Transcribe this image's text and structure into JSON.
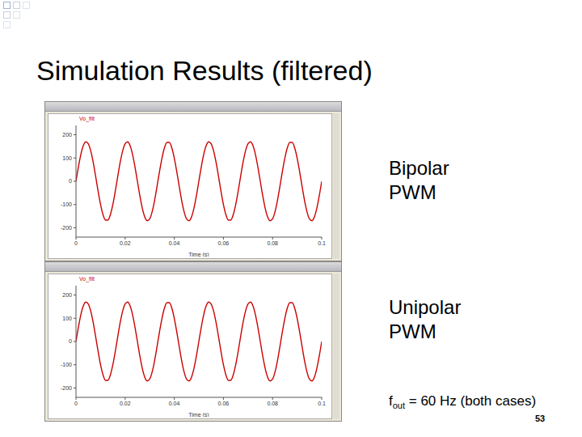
{
  "slide": {
    "title": "Simulation Results (filtered)",
    "labels": [
      "Bipolar PWM",
      "Unipolar PWM"
    ],
    "note": {
      "base": "f",
      "subscript": "out",
      "rest": " = 60 Hz (both cases)"
    },
    "page": 53
  },
  "chart_data": [
    {
      "type": "line",
      "xlabel": "Time (s)",
      "grid": false,
      "xlim": [
        0,
        0.1
      ],
      "xticks": [
        0,
        0.02,
        0.04,
        0.06,
        0.08,
        0.1
      ],
      "ylim": [
        -240,
        240
      ],
      "yticks": [
        -200,
        -100,
        0,
        100,
        200
      ],
      "x": [
        0,
        0.001,
        0.002,
        0.003,
        0.004,
        0.005,
        0.006,
        0.007,
        0.008,
        0.009,
        0.01,
        0.011,
        0.012,
        0.013,
        0.014,
        0.015,
        0.016,
        0.017,
        0.018,
        0.019,
        0.02,
        0.021,
        0.022,
        0.023,
        0.024,
        0.025,
        0.026,
        0.027,
        0.028,
        0.029,
        0.03,
        0.031,
        0.032,
        0.033,
        0.034,
        0.035,
        0.036,
        0.037,
        0.038,
        0.039,
        0.04,
        0.041,
        0.042,
        0.043,
        0.044,
        0.045,
        0.046,
        0.047,
        0.048,
        0.049,
        0.05,
        0.051,
        0.052,
        0.053,
        0.054,
        0.055,
        0.056,
        0.057,
        0.058,
        0.059,
        0.06,
        0.061,
        0.062,
        0.063,
        0.064,
        0.065,
        0.066,
        0.067,
        0.068,
        0.069,
        0.07,
        0.071,
        0.072,
        0.073,
        0.074,
        0.075,
        0.076,
        0.077,
        0.078,
        0.079,
        0.08,
        0.081,
        0.082,
        0.083,
        0.084,
        0.085,
        0.086,
        0.087,
        0.088,
        0.089,
        0.09,
        0.091,
        0.092,
        0.093,
        0.094,
        0.095,
        0.096,
        0.097,
        0.098,
        0.099,
        0.1
      ],
      "series": [
        {
          "name": "Vo_filt",
          "color": "#cc0000",
          "values": [
            0,
            62.6,
            116.4,
            153.8,
            169.7,
            161.7,
            131,
            81.9,
            21.3,
            -42.3,
            -99.9,
            -143.5,
            -167,
            -167,
            -143.5,
            -99.9,
            -42.3,
            21.3,
            81.9,
            131,
            161.7,
            169.7,
            153.8,
            116.4,
            62.6,
            0,
            -62.6,
            -116.4,
            -153.8,
            -169.7,
            -161.7,
            -131,
            -81.9,
            -21.3,
            42.3,
            99.9,
            143.5,
            167,
            167,
            143.5,
            99.9,
            42.3,
            -21.3,
            -81.9,
            -131,
            -161.7,
            -169.7,
            -153.8,
            -116.4,
            -62.6,
            0,
            62.6,
            116.4,
            153.8,
            169.7,
            161.7,
            131,
            81.9,
            21.3,
            -42.3,
            -99.9,
            -143.5,
            -167,
            -167,
            -143.5,
            -99.9,
            -42.3,
            21.3,
            81.9,
            131,
            161.7,
            169.7,
            153.8,
            116.4,
            62.6,
            0,
            -62.6,
            -116.4,
            -153.8,
            -169.7,
            -161.7,
            -131,
            -81.9,
            -21.3,
            42.3,
            99.9,
            143.5,
            167,
            167,
            143.5,
            99.9,
            42.3,
            -21.3,
            -81.9,
            -131,
            -161.7,
            -169.7,
            -153.8,
            -116.4,
            -62.6,
            0
          ]
        }
      ]
    },
    {
      "type": "line",
      "xlabel": "Time (s)",
      "grid": false,
      "xlim": [
        0,
        0.1
      ],
      "xticks": [
        0,
        0.02,
        0.04,
        0.06,
        0.08,
        0.1
      ],
      "ylim": [
        -240,
        240
      ],
      "yticks": [
        -200,
        -100,
        0,
        100,
        200
      ],
      "x": [
        0,
        0.001,
        0.002,
        0.003,
        0.004,
        0.005,
        0.006,
        0.007,
        0.008,
        0.009,
        0.01,
        0.011,
        0.012,
        0.013,
        0.014,
        0.015,
        0.016,
        0.017,
        0.018,
        0.019,
        0.02,
        0.021,
        0.022,
        0.023,
        0.024,
        0.025,
        0.026,
        0.027,
        0.028,
        0.029,
        0.03,
        0.031,
        0.032,
        0.033,
        0.034,
        0.035,
        0.036,
        0.037,
        0.038,
        0.039,
        0.04,
        0.041,
        0.042,
        0.043,
        0.044,
        0.045,
        0.046,
        0.047,
        0.048,
        0.049,
        0.05,
        0.051,
        0.052,
        0.053,
        0.054,
        0.055,
        0.056,
        0.057,
        0.058,
        0.059,
        0.06,
        0.061,
        0.062,
        0.063,
        0.064,
        0.065,
        0.066,
        0.067,
        0.068,
        0.069,
        0.07,
        0.071,
        0.072,
        0.073,
        0.074,
        0.075,
        0.076,
        0.077,
        0.078,
        0.079,
        0.08,
        0.081,
        0.082,
        0.083,
        0.084,
        0.085,
        0.086,
        0.087,
        0.088,
        0.089,
        0.09,
        0.091,
        0.092,
        0.093,
        0.094,
        0.095,
        0.096,
        0.097,
        0.098,
        0.099,
        0.1
      ],
      "series": [
        {
          "name": "Vo_filt",
          "color": "#cc0000",
          "values": [
            0,
            62.6,
            116.4,
            153.8,
            169.7,
            161.7,
            131,
            81.9,
            21.3,
            -42.3,
            -99.9,
            -143.5,
            -167,
            -167,
            -143.5,
            -99.9,
            -42.3,
            21.3,
            81.9,
            131,
            161.7,
            169.7,
            153.8,
            116.4,
            62.6,
            0,
            -62.6,
            -116.4,
            -153.8,
            -169.7,
            -161.7,
            -131,
            -81.9,
            -21.3,
            42.3,
            99.9,
            143.5,
            167,
            167,
            143.5,
            99.9,
            42.3,
            -21.3,
            -81.9,
            -131,
            -161.7,
            -169.7,
            -153.8,
            -116.4,
            -62.6,
            0,
            62.6,
            116.4,
            153.8,
            169.7,
            161.7,
            131,
            81.9,
            21.3,
            -42.3,
            -99.9,
            -143.5,
            -167,
            -167,
            -143.5,
            -99.9,
            -42.3,
            21.3,
            81.9,
            131,
            161.7,
            169.7,
            153.8,
            116.4,
            62.6,
            0,
            -62.6,
            -116.4,
            -153.8,
            -169.7,
            -161.7,
            -131,
            -81.9,
            -21.3,
            42.3,
            99.9,
            143.5,
            167,
            167,
            143.5,
            99.9,
            42.3,
            -21.3,
            -81.9,
            -131,
            -161.7,
            -169.7,
            -153.8,
            -116.4,
            -62.6,
            0
          ]
        }
      ]
    }
  ]
}
